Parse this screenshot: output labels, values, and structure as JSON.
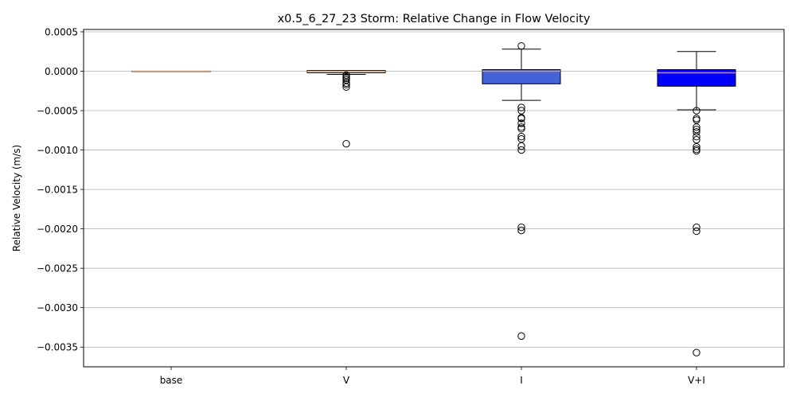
{
  "chart_data": {
    "type": "box",
    "title": "x0.5_6_27_23 Storm: Relative Change in Flow Velocity",
    "xlabel": "",
    "ylabel": "Relative Velocity (m/s)",
    "ylim": [
      -0.00375,
      0.00053
    ],
    "yticks": [
      0.0005,
      0.0,
      -0.0005,
      -0.001,
      -0.0015,
      -0.002,
      -0.0025,
      -0.003,
      -0.0035
    ],
    "ytick_labels": [
      "0.0005",
      "0.0000",
      "−0.0005",
      "−0.0010",
      "−0.0015",
      "−0.0020",
      "−0.0025",
      "−0.0030",
      "−0.0035"
    ],
    "grid": "horizontal",
    "categories": [
      "base",
      "V",
      "I",
      "V+I"
    ],
    "boxes": [
      {
        "label": "base",
        "color": "#ffffff",
        "median_color": "#e8924a",
        "q1": 0.0,
        "median": 0.0,
        "q3": 0.0,
        "whisker_low": 0.0,
        "whisker_high": 0.0,
        "outliers": []
      },
      {
        "label": "V",
        "color": "#ffffff",
        "median_color": "#e8924a",
        "q1": -2e-05,
        "median": 0.0,
        "q3": 1e-05,
        "whisker_low": -4e-05,
        "whisker_high": 1e-05,
        "outliers": [
          -5e-05,
          -7e-05,
          -9e-05,
          -0.00011,
          -0.00015,
          -0.00017,
          -0.0002,
          -0.00092
        ]
      },
      {
        "label": "I",
        "color": "#4363d8",
        "median_color": "#e8924a",
        "q1": -0.00016,
        "median": 0.0,
        "q3": 2e-05,
        "whisker_low": -0.00037,
        "whisker_high": 0.00028,
        "outliers": [
          0.00032,
          -0.00046,
          -0.0005,
          -0.00059,
          -0.0006,
          -0.00066,
          -0.00071,
          -0.00073,
          -0.00083,
          -0.00086,
          -0.00095,
          -0.001,
          -0.00198,
          -0.00202,
          -0.00336
        ]
      },
      {
        "label": "V+I",
        "color": "#0000ff",
        "median_color": "#e8924a",
        "q1": -0.00019,
        "median": -2e-05,
        "q3": 2e-05,
        "whisker_low": -0.00049,
        "whisker_high": 0.00025,
        "outliers": [
          -0.0005,
          -0.0006,
          -0.00062,
          -0.00071,
          -0.00074,
          -0.00077,
          -0.00083,
          -0.00087,
          -0.00096,
          -0.00099,
          -0.00101,
          -0.00198,
          -0.00203,
          -0.00357
        ]
      }
    ]
  }
}
